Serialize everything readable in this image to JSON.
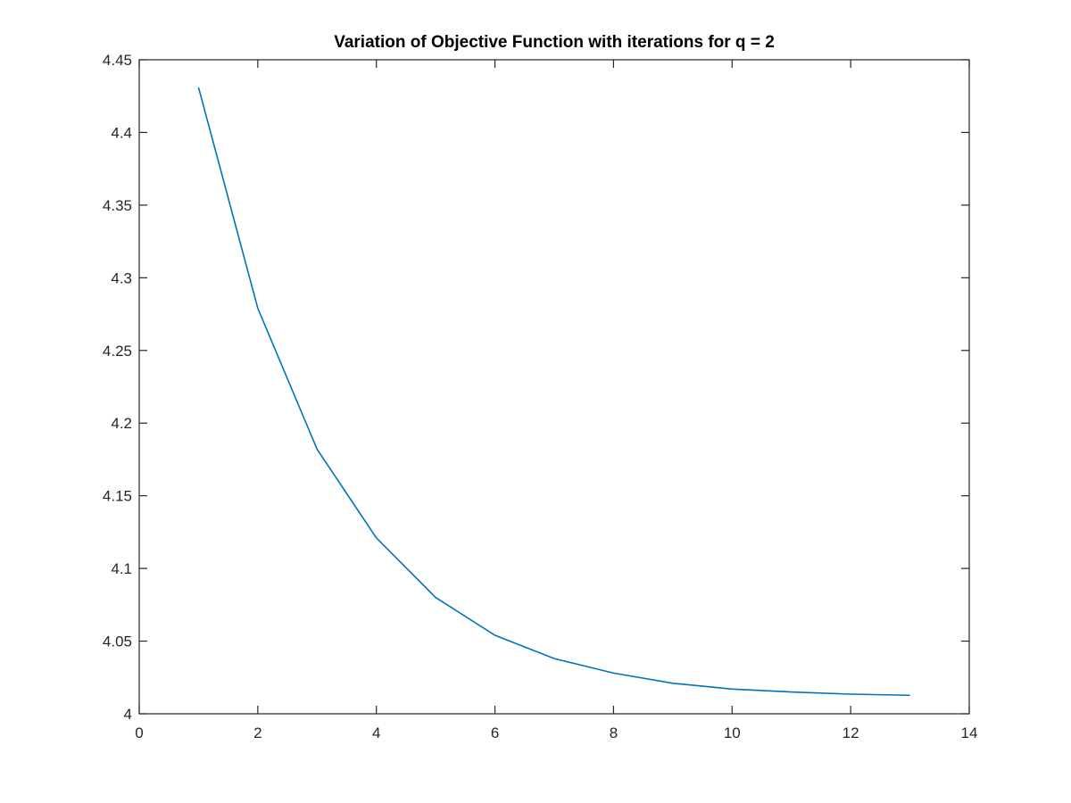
{
  "chart_data": {
    "type": "line",
    "title": "Variation of Objective Function with iterations for q = 2",
    "xlabel": "",
    "ylabel": "",
    "xlim": [
      0,
      14
    ],
    "ylim": [
      4,
      4.45
    ],
    "xticks": [
      0,
      2,
      4,
      6,
      8,
      10,
      12,
      14
    ],
    "xtick_labels": [
      "0",
      "2",
      "4",
      "6",
      "8",
      "10",
      "12",
      "14"
    ],
    "yticks": [
      4,
      4.05,
      4.1,
      4.15,
      4.2,
      4.25,
      4.3,
      4.35,
      4.4,
      4.45
    ],
    "ytick_labels": [
      "4",
      "4.05",
      "4.1",
      "4.15",
      "4.2",
      "4.25",
      "4.3",
      "4.35",
      "4.4",
      "4.45"
    ],
    "grid": false,
    "legend": null,
    "series": [
      {
        "color": "#0072BD",
        "x": [
          1,
          2,
          3,
          4,
          5,
          6,
          7,
          8,
          9,
          10,
          11,
          12,
          13
        ],
        "y": [
          4.431,
          4.279,
          4.182,
          4.121,
          4.08,
          4.054,
          4.038,
          4.028,
          4.021,
          4.017,
          4.015,
          4.0135,
          4.0127
        ]
      }
    ]
  }
}
